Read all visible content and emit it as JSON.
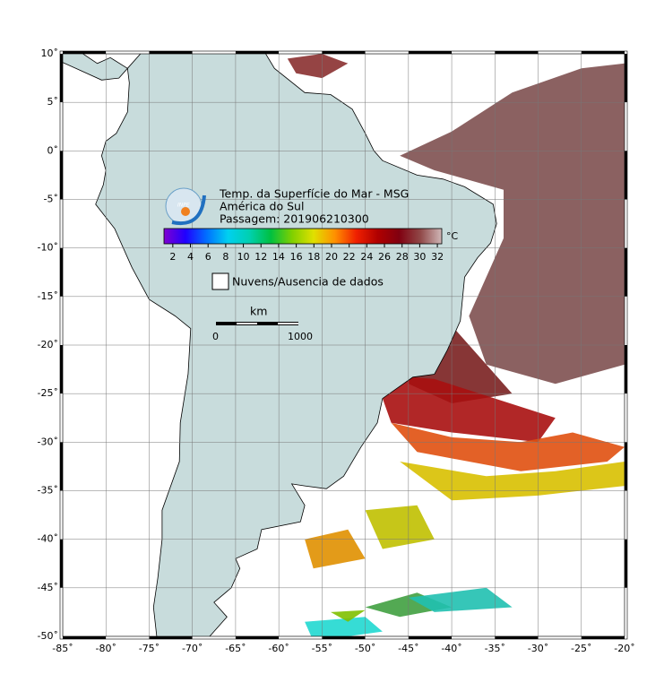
{
  "map": {
    "title": "Temp. da Superfície do Mar - MSG",
    "region": "América do Sul",
    "pass": "Passagem: 201906210300",
    "logo": "INPE",
    "lonlim": [
      -85,
      -20
    ],
    "latlim": [
      -50,
      10
    ],
    "lonticks": [
      {
        "value": -85,
        "label": "-85˚"
      },
      {
        "value": -80,
        "label": "-80˚"
      },
      {
        "value": -75,
        "label": "-75˚"
      },
      {
        "value": -70,
        "label": "-70˚"
      },
      {
        "value": -65,
        "label": "-65˚"
      },
      {
        "value": -60,
        "label": "-60˚"
      },
      {
        "value": -55,
        "label": "-55˚"
      },
      {
        "value": -50,
        "label": "-50˚"
      },
      {
        "value": -45,
        "label": "-45˚"
      },
      {
        "value": -40,
        "label": "-40˚"
      },
      {
        "value": -35,
        "label": "-35˚"
      },
      {
        "value": -30,
        "label": "-30˚"
      },
      {
        "value": -25,
        "label": "-25˚"
      },
      {
        "value": -20,
        "label": "-20˚"
      }
    ],
    "latticks": [
      {
        "value": 10,
        "label": "10˚"
      },
      {
        "value": 5,
        "label": "5˚"
      },
      {
        "value": 0,
        "label": "0˚"
      },
      {
        "value": -5,
        "label": "-5˚"
      },
      {
        "value": -10,
        "label": "-10˚"
      },
      {
        "value": -15,
        "label": "-15˚"
      },
      {
        "value": -20,
        "label": "-20˚"
      },
      {
        "value": -25,
        "label": "-25˚"
      },
      {
        "value": -30,
        "label": "-30˚"
      },
      {
        "value": -35,
        "label": "-35˚"
      },
      {
        "value": -40,
        "label": "-40˚"
      },
      {
        "value": -45,
        "label": "-45˚"
      },
      {
        "value": -50,
        "label": "-50˚"
      }
    ],
    "colorbar": {
      "range": [
        1,
        32.5
      ],
      "ticks": [
        2,
        4,
        6,
        8,
        10,
        12,
        14,
        16,
        18,
        20,
        22,
        24,
        26,
        28,
        30,
        32
      ],
      "unit": "°C",
      "colors": [
        "#8000d0",
        "#2000ff",
        "#0070ff",
        "#00d0f0",
        "#00d0b0",
        "#00c040",
        "#80d000",
        "#e0e000",
        "#ff9000",
        "#f02000",
        "#b00000",
        "#800010",
        "#904848",
        "#d0b8b8"
      ]
    },
    "legend": "Nuvens/Ausencia de dados",
    "scale": {
      "title": "km",
      "labels": [
        "0",
        "1000"
      ]
    }
  }
}
